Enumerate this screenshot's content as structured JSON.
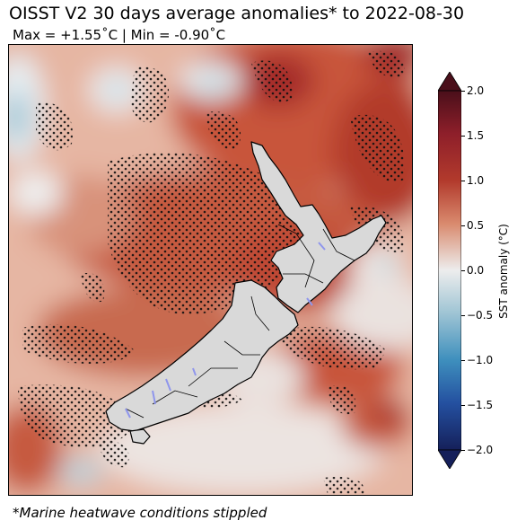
{
  "title": "OISST V2 30 days average anomalies* to 2022-08-30",
  "subtitle": "Max = +1.55˚C | Min = -0.90˚C",
  "footnote": "*Marine heatwave conditions stippled",
  "colorbar": {
    "label": "SST anomaly (°C)",
    "ticks": [
      "2.0",
      "1.5",
      "1.0",
      "0.5",
      "0.0",
      "−0.5",
      "−1.0",
      "−1.5",
      "−2.0"
    ],
    "range": [
      -2.0,
      2.0
    ],
    "colors": {
      "max": "#4a0f1a",
      "high": "#a52a2a",
      "warm": "#c8553a",
      "mild": "#e0a08a",
      "zero": "#ededed",
      "cool": "#9ec4d4",
      "cold": "#2a7fb5",
      "min": "#15205a"
    }
  },
  "map": {
    "land_color": "#d9d9d9",
    "lake_color": "#8f96ec",
    "coast_color": "#000000",
    "stipple_color": "#111111"
  }
}
